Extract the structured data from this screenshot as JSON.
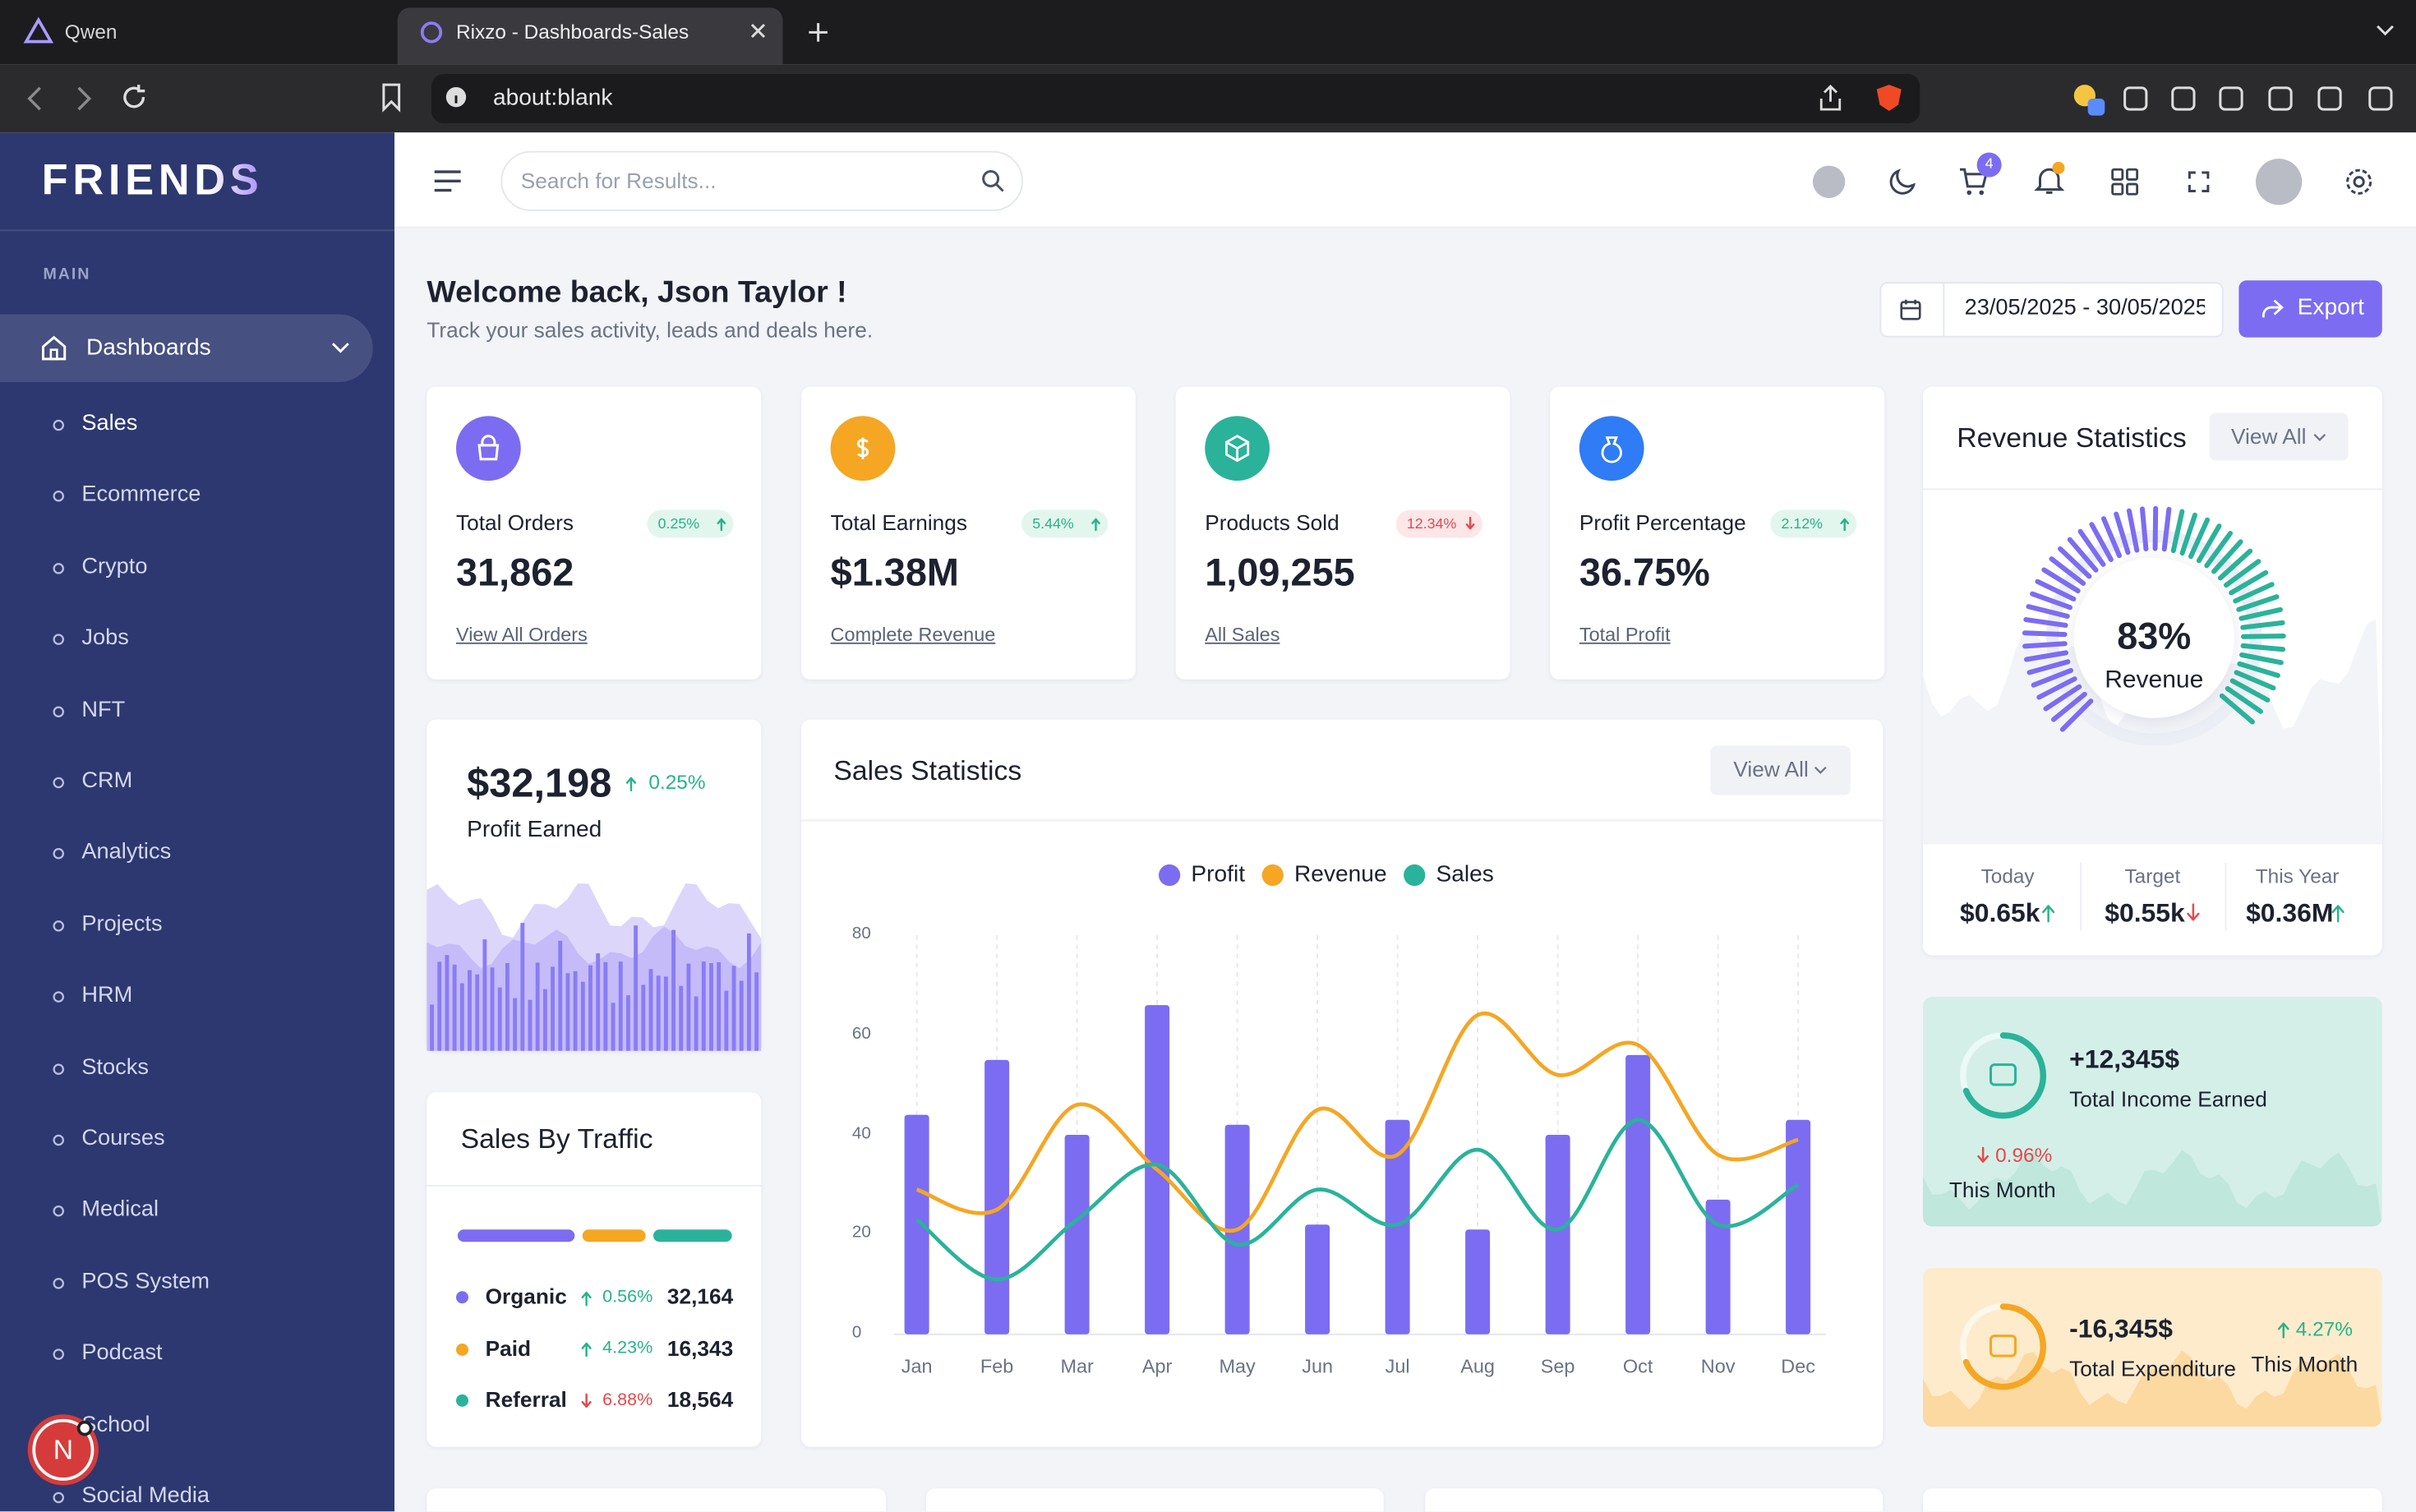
{
  "browser": {
    "tabs": [
      "Qwen",
      "Rixzo - Dashboards-Sales"
    ],
    "url": "about:blank"
  },
  "sidebar": {
    "logo": "FRIENDS",
    "section": "MAIN",
    "active": "Dashboards",
    "items": [
      "Sales",
      "Ecommerce",
      "Crypto",
      "Jobs",
      "NFT",
      "CRM",
      "Analytics",
      "Projects",
      "HRM",
      "Stocks",
      "Courses",
      "Medical",
      "POS System",
      "Podcast",
      "School",
      "Social Media"
    ],
    "dev_badge": "N"
  },
  "header": {
    "search_placeholder": "Search for Results...",
    "cart_count": 4
  },
  "welcome": {
    "title": "Welcome back, Json Taylor !",
    "subtitle": "Track your sales activity, leads and deals here.",
    "date_range": "23/05/2025 - 30/05/2025",
    "export": "Export"
  },
  "stats": [
    {
      "title": "Total Orders",
      "change": "0.25%",
      "trend": "up",
      "value": "31,862",
      "link": "View All Orders",
      "color": "#7c6cf2"
    },
    {
      "title": "Total Earnings",
      "change": "5.44%",
      "trend": "up",
      "value": "$1.38M",
      "link": "Complete Revenue",
      "color": "#f5a623"
    },
    {
      "title": "Products Sold",
      "change": "12.34%",
      "trend": "down",
      "value": "1,09,255",
      "link": "All Sales",
      "color": "#2ab39a"
    },
    {
      "title": "Profit Percentage",
      "change": "2.12%",
      "trend": "up",
      "value": "36.75%",
      "link": "Total Profit",
      "color": "#2f7cf6"
    }
  ],
  "profit": {
    "value": "$32,198",
    "change": "0.25%",
    "label": "Profit Earned"
  },
  "traffic": {
    "title": "Sales By Traffic",
    "rows": [
      {
        "name": "Organic",
        "color": "#7c6cf2",
        "change": "0.56%",
        "trend": "up",
        "value": "32,164"
      },
      {
        "name": "Paid",
        "color": "#f5a623",
        "change": "4.23%",
        "trend": "up",
        "value": "16,343"
      },
      {
        "name": "Referral",
        "color": "#2ab39a",
        "change": "6.88%",
        "trend": "down",
        "value": "18,564"
      }
    ]
  },
  "revenue": {
    "title": "Revenue Statistics",
    "view_all": "View All",
    "percent": "83%",
    "label": "Revenue",
    "stats": [
      {
        "label": "Today",
        "value": "$0.65k",
        "trend": "up"
      },
      {
        "label": "Target",
        "value": "$0.55k",
        "trend": "down"
      },
      {
        "label": "This Year",
        "value": "$0.36M",
        "trend": "up"
      }
    ]
  },
  "income": {
    "value": "+12,345$",
    "label": "Total Income Earned",
    "change": "0.96%",
    "trend": "down",
    "period": "This Month"
  },
  "expenditure": {
    "value": "-16,345$",
    "label": "Total Expenditure",
    "change": "4.27%",
    "trend": "up",
    "period": "This Month"
  },
  "chart_data": {
    "type": "bar",
    "title": "Sales Statistics",
    "view_all": "View All",
    "categories": [
      "Jan",
      "Feb",
      "Mar",
      "Apr",
      "May",
      "Jun",
      "Jul",
      "Aug",
      "Sep",
      "Oct",
      "Nov",
      "Dec"
    ],
    "series": [
      {
        "name": "Profit",
        "type": "bar",
        "color": "#7c6cf2",
        "values": [
          44,
          55,
          40,
          66,
          42,
          22,
          43,
          21,
          40,
          56,
          27,
          43
        ]
      },
      {
        "name": "Revenue",
        "type": "line",
        "color": "#f5a623",
        "values": [
          29,
          25,
          46,
          33,
          21,
          45,
          36,
          64,
          52,
          58,
          36,
          39
        ]
      },
      {
        "name": "Sales",
        "type": "line",
        "color": "#2ab39a",
        "values": [
          23,
          11,
          23,
          34,
          18,
          29,
          22,
          37,
          21,
          43,
          22,
          30
        ]
      }
    ],
    "ylim": [
      0,
      80
    ],
    "yticks": [
      0,
      20,
      40,
      60,
      80
    ],
    "grid": true
  }
}
